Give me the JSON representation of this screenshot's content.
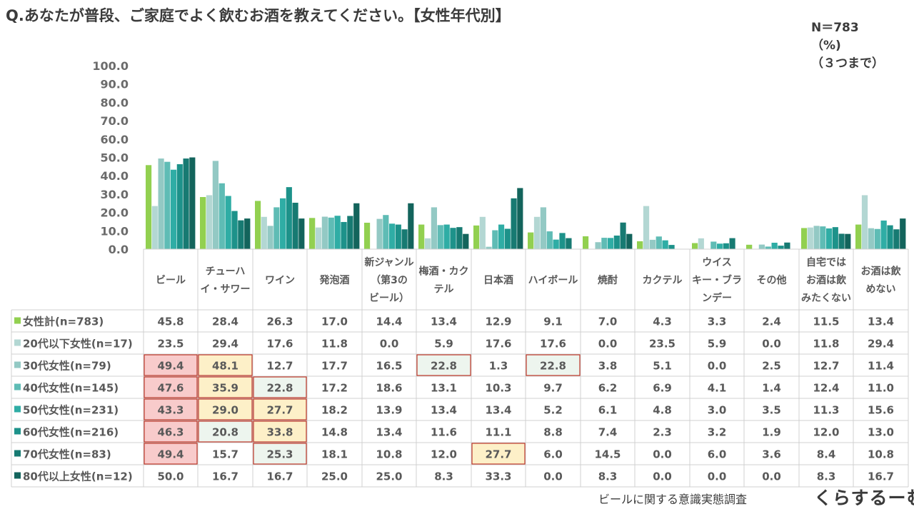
{
  "header": {
    "title": "Q.あなたが普段、ご家庭でよく飲むお酒を教えてください。【女性年代別】",
    "note_lines": [
      "N＝783",
      "（%)",
      "（３つまで）"
    ]
  },
  "footer": {
    "source": "ビールに関する意識実態調査",
    "logo": "くらするーむ"
  },
  "chart_data": {
    "type": "bar",
    "ylim": [
      0,
      100
    ],
    "yticks": [
      "0.0",
      "10.0",
      "20.0",
      "30.0",
      "40.0",
      "50.0",
      "60.0",
      "70.0",
      "80.0",
      "90.0",
      "100.0"
    ],
    "categories": [
      [
        "ビール"
      ],
      [
        "チューハ",
        "イ・サワー"
      ],
      [
        "ワイン"
      ],
      [
        "発泡酒"
      ],
      [
        "新ジャンル",
        "（第3の",
        "ビール）"
      ],
      [
        "梅酒・カク",
        "テル"
      ],
      [
        "日本酒"
      ],
      [
        "ハイボール"
      ],
      [
        "焼酎"
      ],
      [
        "カクテル"
      ],
      [
        "ウイス",
        "キー・ブラ",
        "ンデー"
      ],
      [
        "その他"
      ],
      [
        "自宅では",
        "お酒は飲",
        "みたくない"
      ],
      [
        "お酒は飲",
        "めない"
      ]
    ],
    "series": [
      {
        "name": "女性計(n=783)",
        "color": "#92d050",
        "values": [
          "45.8",
          "28.4",
          "26.3",
          "17.0",
          "14.4",
          "13.4",
          "12.9",
          "9.1",
          "7.0",
          "4.3",
          "3.3",
          "2.4",
          "11.5",
          "13.4"
        ]
      },
      {
        "name": "20代以下女性(n=17)",
        "color": "#b3d7d3",
        "values": [
          "23.5",
          "29.4",
          "17.6",
          "11.8",
          "0.0",
          "5.9",
          "17.6",
          "17.6",
          "0.0",
          "23.5",
          "5.9",
          "0.0",
          "11.8",
          "29.4"
        ]
      },
      {
        "name": "30代女性(n=79)",
        "color": "#93c9c4",
        "values": [
          "49.4",
          "48.1",
          "12.7",
          "17.7",
          "16.5",
          "22.8",
          "1.3",
          "22.8",
          "3.8",
          "5.1",
          "0.0",
          "2.5",
          "12.7",
          "11.4"
        ]
      },
      {
        "name": "40代女性(n=145)",
        "color": "#5fbcb5",
        "values": [
          "47.6",
          "35.9",
          "22.8",
          "17.2",
          "18.6",
          "13.1",
          "10.3",
          "9.7",
          "6.2",
          "6.9",
          "4.1",
          "1.4",
          "12.4",
          "11.0"
        ]
      },
      {
        "name": "50代女性(n=231)",
        "color": "#2fada5",
        "values": [
          "43.3",
          "29.0",
          "27.7",
          "18.2",
          "13.9",
          "13.4",
          "13.4",
          "5.2",
          "6.1",
          "4.8",
          "3.0",
          "3.5",
          "11.3",
          "15.6"
        ]
      },
      {
        "name": "60代女性(n=216)",
        "color": "#1d928a",
        "values": [
          "46.3",
          "20.8",
          "33.8",
          "14.8",
          "13.4",
          "11.6",
          "11.1",
          "8.8",
          "7.4",
          "2.3",
          "3.2",
          "1.9",
          "12.0",
          "13.0"
        ]
      },
      {
        "name": "70代女性(n=83)",
        "color": "#177a72",
        "values": [
          "49.4",
          "15.7",
          "25.3",
          "18.1",
          "10.8",
          "12.0",
          "27.7",
          "6.0",
          "14.5",
          "0.0",
          "6.0",
          "3.6",
          "8.4",
          "10.8"
        ]
      },
      {
        "name": "80代以上女性(n=12)",
        "color": "#13645c",
        "values": [
          "50.0",
          "16.7",
          "16.7",
          "25.0",
          "25.0",
          "8.3",
          "33.3",
          "0.0",
          "8.3",
          "0.0",
          "0.0",
          "0.0",
          "8.3",
          "16.7"
        ]
      }
    ],
    "highlights": [
      {
        "row": 2,
        "col": 0,
        "fill": "#f8cbcb"
      },
      {
        "row": 2,
        "col": 1,
        "fill": "#fdf0c8"
      },
      {
        "row": 2,
        "col": 5,
        "fill": "#edf5ee"
      },
      {
        "row": 2,
        "col": 7,
        "fill": "#edf5ee"
      },
      {
        "row": 3,
        "col": 0,
        "fill": "#f8cbcb"
      },
      {
        "row": 3,
        "col": 1,
        "fill": "#fdf0c8"
      },
      {
        "row": 3,
        "col": 2,
        "fill": "#edf5ee"
      },
      {
        "row": 4,
        "col": 0,
        "fill": "#f8cbcb"
      },
      {
        "row": 4,
        "col": 1,
        "fill": "#fdf0c8"
      },
      {
        "row": 4,
        "col": 2,
        "fill": "#fdf0c8"
      },
      {
        "row": 5,
        "col": 0,
        "fill": "#f8cbcb"
      },
      {
        "row": 5,
        "col": 1,
        "fill": "#edf5ee"
      },
      {
        "row": 5,
        "col": 2,
        "fill": "#fdf0c8"
      },
      {
        "row": 6,
        "col": 0,
        "fill": "#f8cbcb"
      },
      {
        "row": 6,
        "col": 2,
        "fill": "#edf5ee"
      },
      {
        "row": 6,
        "col": 6,
        "fill": "#fdf0c8"
      }
    ],
    "highlight_border": "#c0392b"
  }
}
